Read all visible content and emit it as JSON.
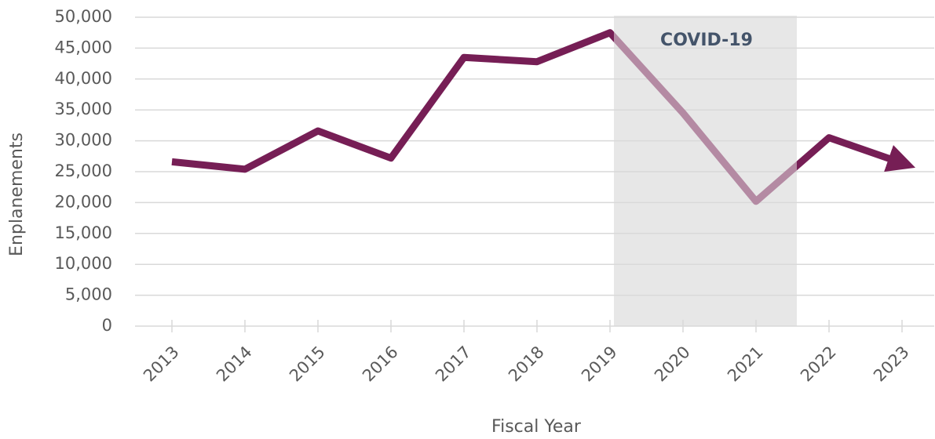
{
  "chart_data": {
    "type": "line",
    "x_label": "Fiscal Year",
    "y_label": "Enplanements",
    "annotation": "COVID-19",
    "categories": [
      "2013",
      "2014",
      "2015",
      "2016",
      "2017",
      "2018",
      "2019",
      "2020",
      "2021",
      "2022",
      "2023"
    ],
    "series": [
      {
        "name": "Enplanements",
        "color": "#761e55",
        "highlight_color": "#b48aa3",
        "values": [
          26600,
          25400,
          31600,
          27200,
          43500,
          42800,
          47500,
          34500,
          20200,
          30500,
          26400
        ]
      }
    ],
    "ylim": [
      0,
      50000
    ],
    "yticks": [
      0,
      {
        "value": 5000,
        "label": "5,000"
      },
      {
        "value": 10000,
        "label": "10,000"
      },
      {
        "value": 15000,
        "label": "15,000"
      },
      {
        "value": 20000,
        "label": "20,000"
      },
      {
        "value": 25000,
        "label": "25,000"
      },
      {
        "value": 30000,
        "label": "30,000"
      },
      {
        "value": 35000,
        "label": "35,000"
      },
      {
        "value": 40000,
        "label": "40,000"
      },
      {
        "value": 45000,
        "label": "45,000"
      },
      {
        "value": 50000,
        "label": "50,000"
      }
    ],
    "grid": true
  }
}
